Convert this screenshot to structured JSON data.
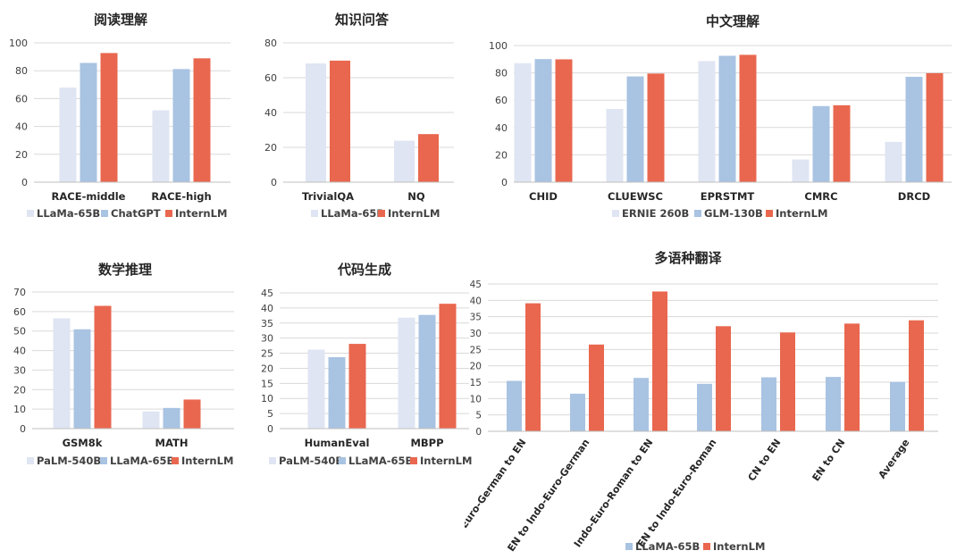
{
  "colors": {
    "light": "#dfe5f2",
    "mid": "#a9c3e2",
    "accent": "#e9674f",
    "grid": "#d9d9d9",
    "axis": "#bfbfbf",
    "text": "#404040"
  },
  "chart_data": [
    {
      "type": "bar",
      "title": "阅读理解",
      "categories": [
        "RACE-middle",
        "RACE-high"
      ],
      "ylim": [
        0,
        100
      ],
      "yticks": [
        0,
        20,
        40,
        60,
        80,
        100
      ],
      "grid": true,
      "legend_position": "bottom",
      "series": [
        {
          "name": "LLaMa-65B",
          "color": "#dfe5f2",
          "values": [
            67.9,
            51.6
          ]
        },
        {
          "name": "ChatGPT",
          "color": "#a9c3e2",
          "values": [
            85.6,
            81.2
          ]
        },
        {
          "name": "InternLM",
          "color": "#e9674f",
          "values": [
            92.7,
            88.9
          ]
        }
      ]
    },
    {
      "type": "bar",
      "title": "知识问答",
      "categories": [
        "TrivialQA",
        "NQ"
      ],
      "ylim": [
        0,
        80
      ],
      "yticks": [
        0,
        20,
        40,
        60,
        80
      ],
      "grid": true,
      "legend_position": "bottom",
      "series": [
        {
          "name": "LLaMa-65B",
          "color": "#dfe5f2",
          "values": [
            68.2,
            23.8
          ]
        },
        {
          "name": "InternLM",
          "color": "#e9674f",
          "values": [
            69.8,
            27.6
          ]
        }
      ]
    },
    {
      "type": "bar",
      "title": "中文理解",
      "categories": [
        "CHID",
        "CLUEWSC",
        "EPRSTMT",
        "CMRC",
        "DRCD"
      ],
      "ylim": [
        0,
        100
      ],
      "yticks": [
        0,
        20,
        40,
        60,
        80,
        100
      ],
      "grid": true,
      "legend_position": "bottom",
      "series": [
        {
          "name": "ERNIE 260B",
          "color": "#dfe5f2",
          "values": [
            87.1,
            53.6,
            88.6,
            16.6,
            29.5
          ]
        },
        {
          "name": "GLM-130B",
          "color": "#a9c3e2",
          "values": [
            90.1,
            77.4,
            92.5,
            55.7,
            77.1
          ]
        },
        {
          "name": "InternLM",
          "color": "#e9674f",
          "values": [
            89.9,
            79.5,
            93.2,
            56.3,
            79.8
          ]
        }
      ]
    },
    {
      "type": "bar",
      "title": "数学推理",
      "categories": [
        "GSM8k",
        "MATH"
      ],
      "ylim": [
        0,
        70
      ],
      "yticks": [
        0,
        10,
        20,
        30,
        40,
        50,
        60,
        70
      ],
      "grid": true,
      "legend_position": "bottom",
      "series": [
        {
          "name": "PaLM-540B",
          "color": "#dfe5f2",
          "values": [
            56.5,
            8.8
          ]
        },
        {
          "name": "LLaMA-65B",
          "color": "#a9c3e2",
          "values": [
            50.9,
            10.6
          ]
        },
        {
          "name": "InternLM",
          "color": "#e9674f",
          "values": [
            62.9,
            14.9
          ]
        }
      ]
    },
    {
      "type": "bar",
      "title": "代码生成",
      "categories": [
        "HumanEval",
        "MBPP"
      ],
      "ylim": [
        0,
        45
      ],
      "yticks": [
        0,
        5,
        10,
        15,
        20,
        25,
        30,
        35,
        40,
        45
      ],
      "grid": true,
      "legend_position": "bottom",
      "series": [
        {
          "name": "PaLM-540B",
          "color": "#dfe5f2",
          "values": [
            26.2,
            36.8
          ]
        },
        {
          "name": "LLaMA-65B",
          "color": "#a9c3e2",
          "values": [
            23.7,
            37.7
          ]
        },
        {
          "name": "InternLM",
          "color": "#e9674f",
          "values": [
            28.1,
            41.4
          ]
        }
      ]
    },
    {
      "type": "bar",
      "title": "多语种翻译",
      "categories": [
        "Indo-Euro-German to EN",
        "EN to Indo-Euro-German",
        "Indo-Euro-Roman to EN",
        "EN to Indo-Euro-Roman",
        "CN to EN",
        "EN to CN",
        "Average"
      ],
      "ylim": [
        0,
        45
      ],
      "yticks": [
        0,
        5,
        10,
        15,
        20,
        25,
        30,
        35,
        40,
        45
      ],
      "grid": true,
      "legend_position": "bottom",
      "series": [
        {
          "name": "LLaMA-65B",
          "color": "#a9c3e2",
          "values": [
            15.4,
            11.5,
            16.3,
            14.5,
            16.5,
            16.6,
            15.1
          ]
        },
        {
          "name": "InternLM",
          "color": "#e9674f",
          "values": [
            39.1,
            26.5,
            42.7,
            32.1,
            30.2,
            32.9,
            33.9
          ]
        }
      ]
    }
  ]
}
